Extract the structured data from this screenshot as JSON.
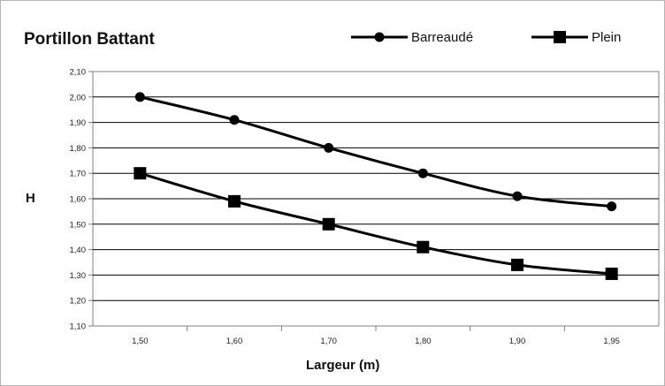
{
  "chart_data": {
    "type": "line",
    "title": "Portillon Battant",
    "xlabel": "Largeur (m)",
    "ylabel": "H",
    "categories": [
      "1,50",
      "1,60",
      "1,70",
      "1,80",
      "1,90",
      "1,95"
    ],
    "ylim": [
      1.1,
      2.1
    ],
    "yticks": [
      "1,10",
      "1,20",
      "1,30",
      "1,40",
      "1,50",
      "1,60",
      "1,70",
      "1,80",
      "1,90",
      "2,00",
      "2,10"
    ],
    "grid": true,
    "legend_position": "top-right",
    "series": [
      {
        "name": "Barreaudé",
        "marker": "circle",
        "values": [
          2.0,
          1.91,
          1.8,
          1.7,
          1.61,
          1.57
        ]
      },
      {
        "name": "Plein",
        "marker": "square",
        "values": [
          1.7,
          1.59,
          1.5,
          1.41,
          1.34,
          1.305
        ]
      }
    ],
    "colors": {
      "line": "#000000",
      "grid": "#000000",
      "plot_border": "#808080"
    }
  }
}
